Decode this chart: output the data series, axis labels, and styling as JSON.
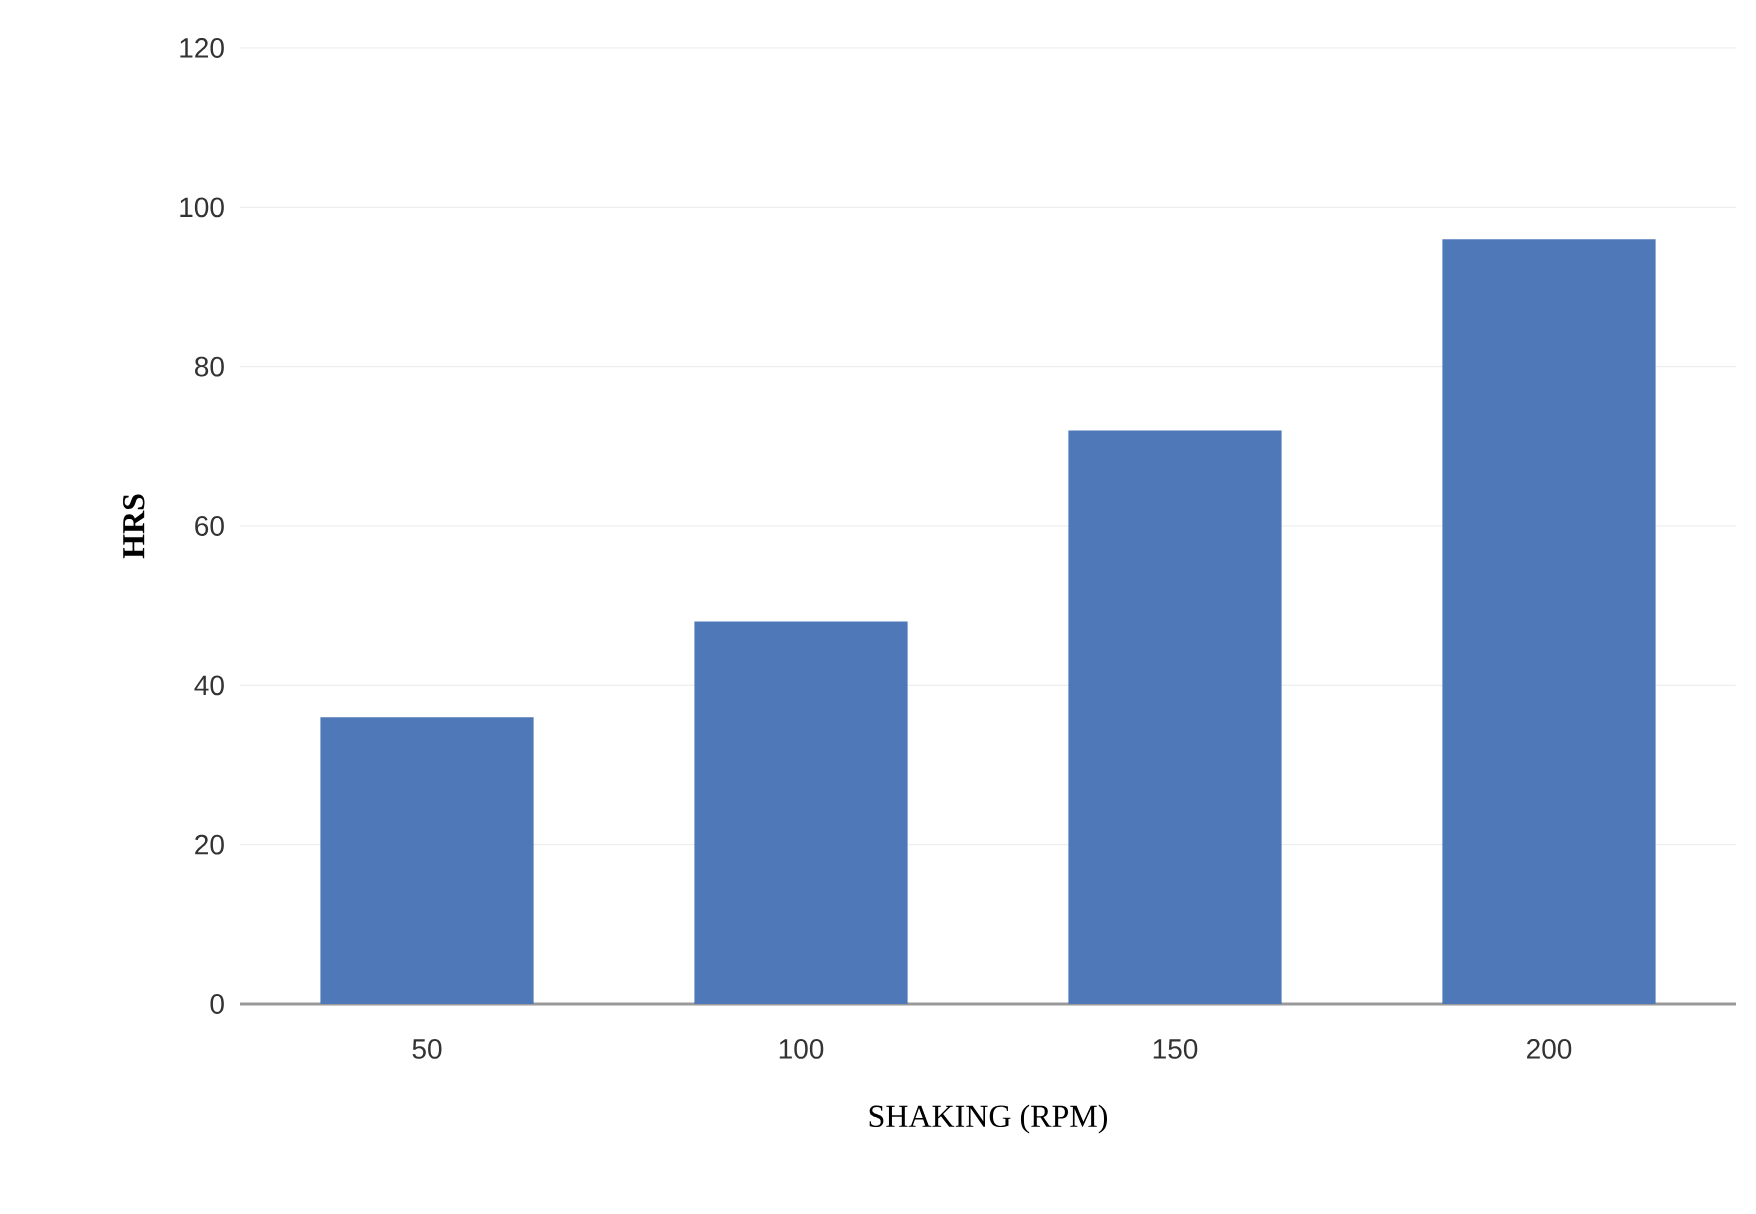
{
  "chart_data": {
    "type": "bar",
    "xlabel": "SHAKING (RPM)",
    "ylabel": "HRS",
    "categories": [
      "50",
      "100",
      "150",
      "200"
    ],
    "values": [
      36,
      48,
      72,
      96
    ],
    "color": "#4f78b8",
    "ylim": [
      0,
      120
    ],
    "yticks": [
      0,
      20,
      40,
      60,
      80,
      100,
      120
    ],
    "grid": "y"
  }
}
